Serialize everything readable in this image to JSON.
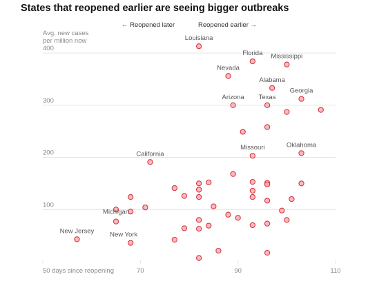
{
  "chart_data": {
    "type": "scatter",
    "title": "States that reopened earlier are seeing bigger outbreaks",
    "ylabel_lines": [
      "Avg. new cases",
      "per million now"
    ],
    "annotation_left": "← Reopened later",
    "annotation_right": "Reopened earlier →",
    "xlim": [
      50,
      110
    ],
    "ylim": [
      0,
      400
    ],
    "xticks": [
      50,
      70,
      90,
      110
    ],
    "xtick_labels": [
      "50 days since reopening",
      "70",
      "90",
      "110"
    ],
    "yticks": [
      100,
      200,
      300,
      400
    ],
    "grid": "horizontal",
    "colors": {
      "dot_fill": "#f7b3b8",
      "dot_stroke": "#d8343f",
      "grid": "#e4e4e4"
    },
    "points": [
      {
        "label": "Louisiana",
        "x": 82,
        "y": 413
      },
      {
        "label": "Florida",
        "x": 93,
        "y": 384
      },
      {
        "label": "Mississippi",
        "x": 100,
        "y": 378
      },
      {
        "label": "Nevada",
        "x": 88,
        "y": 356
      },
      {
        "label": "Alabama",
        "x": 97,
        "y": 333
      },
      {
        "label": "Georgia",
        "x": 103,
        "y": 312
      },
      {
        "label": "Arizona",
        "x": 89,
        "y": 300
      },
      {
        "label": "Texas",
        "x": 96,
        "y": 300
      },
      {
        "label": "",
        "x": 100,
        "y": 287
      },
      {
        "label": "",
        "x": 107,
        "y": 291
      },
      {
        "label": "",
        "x": 96,
        "y": 258
      },
      {
        "label": "",
        "x": 91,
        "y": 249
      },
      {
        "label": "Missouri",
        "x": 93,
        "y": 203
      },
      {
        "label": "Oklahoma",
        "x": 103,
        "y": 208
      },
      {
        "label": "California",
        "x": 72,
        "y": 191
      },
      {
        "label": "",
        "x": 89,
        "y": 168
      },
      {
        "label": "",
        "x": 82,
        "y": 150
      },
      {
        "label": "",
        "x": 84,
        "y": 152
      },
      {
        "label": "",
        "x": 93,
        "y": 153
      },
      {
        "label": "",
        "x": 96,
        "y": 151
      },
      {
        "label": "",
        "x": 96,
        "y": 148
      },
      {
        "label": "",
        "x": 103,
        "y": 150
      },
      {
        "label": "",
        "x": 77,
        "y": 141
      },
      {
        "label": "",
        "x": 82,
        "y": 138
      },
      {
        "label": "",
        "x": 93,
        "y": 136
      },
      {
        "label": "",
        "x": 79,
        "y": 126
      },
      {
        "label": "",
        "x": 82,
        "y": 124
      },
      {
        "label": "",
        "x": 68,
        "y": 124
      },
      {
        "label": "",
        "x": 93,
        "y": 124
      },
      {
        "label": "",
        "x": 101,
        "y": 120
      },
      {
        "label": "",
        "x": 96,
        "y": 117
      },
      {
        "label": "",
        "x": 85,
        "y": 106
      },
      {
        "label": "",
        "x": 71,
        "y": 104
      },
      {
        "label": "",
        "x": 65,
        "y": 100
      },
      {
        "label": "",
        "x": 68,
        "y": 96
      },
      {
        "label": "",
        "x": 99,
        "y": 98
      },
      {
        "label": "",
        "x": 88,
        "y": 90
      },
      {
        "label": "",
        "x": 90,
        "y": 84
      },
      {
        "label": "Michigan",
        "x": 65,
        "y": 77
      },
      {
        "label": "",
        "x": 82,
        "y": 80
      },
      {
        "label": "",
        "x": 100,
        "y": 80
      },
      {
        "label": "",
        "x": 96,
        "y": 73
      },
      {
        "label": "",
        "x": 93,
        "y": 70
      },
      {
        "label": "",
        "x": 84,
        "y": 69
      },
      {
        "label": "",
        "x": 79,
        "y": 64
      },
      {
        "label": "",
        "x": 82,
        "y": 63
      },
      {
        "label": "New Jersey",
        "x": 57,
        "y": 43
      },
      {
        "label": "",
        "x": 77,
        "y": 42
      },
      {
        "label": "New York",
        "x": 68,
        "y": 36
      },
      {
        "label": "",
        "x": 86,
        "y": 21
      },
      {
        "label": "",
        "x": 96,
        "y": 17
      },
      {
        "label": "",
        "x": 82,
        "y": 7
      }
    ]
  }
}
